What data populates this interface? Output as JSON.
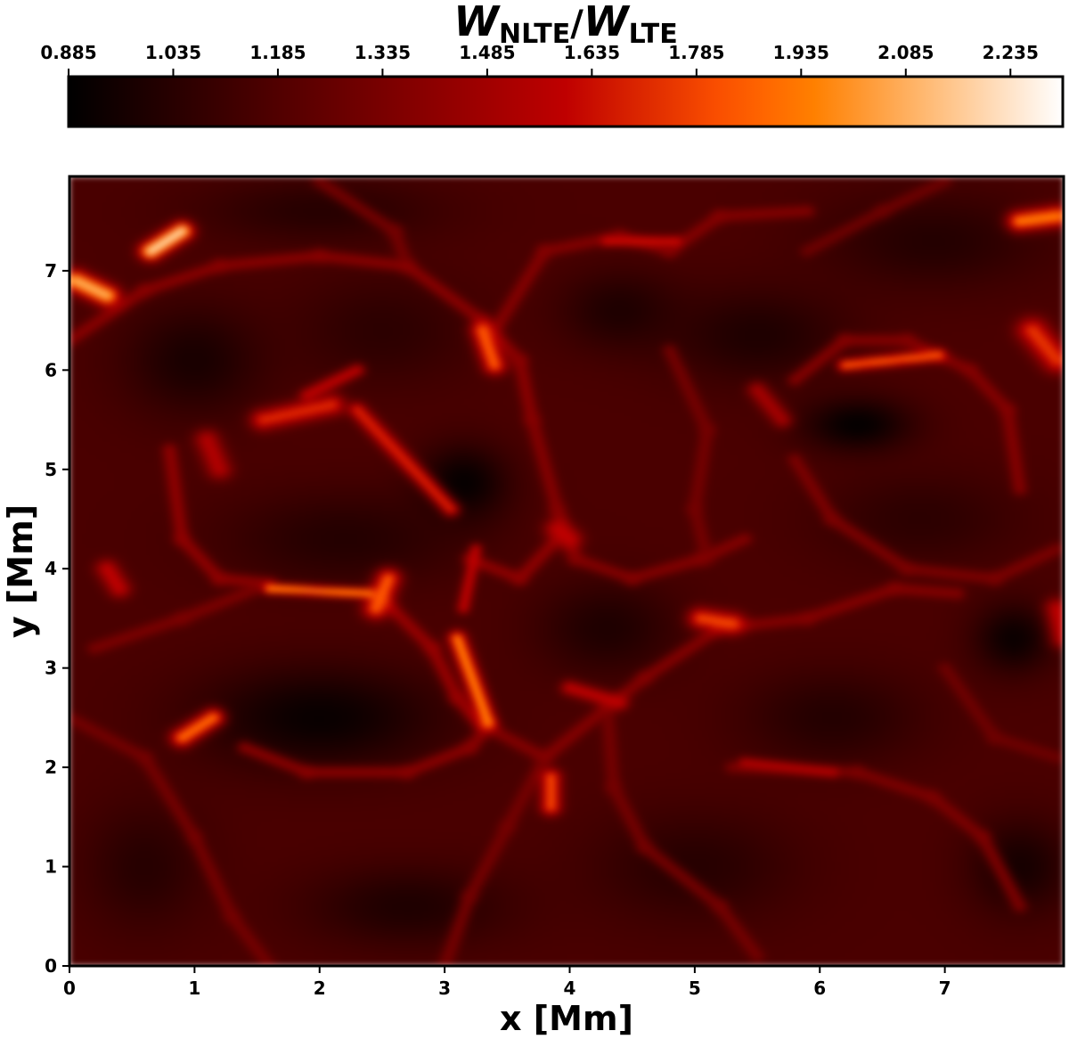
{
  "chart_data": {
    "type": "heatmap",
    "colormap": "gist_heat",
    "colorbar": {
      "title_main_1": "W",
      "title_sub_1": "NLTE",
      "title_slash": "/",
      "title_main_2": "W",
      "title_sub_2": "LTE",
      "placement": "top",
      "range": [
        0.885,
        2.31
      ],
      "ticks": [
        0.885,
        1.035,
        1.185,
        1.335,
        1.485,
        1.635,
        1.785,
        1.935,
        2.085,
        2.235
      ],
      "tick_labels": [
        "0.885",
        "1.035",
        "1.185",
        "1.335",
        "1.485",
        "1.635",
        "1.785",
        "1.935",
        "2.085",
        "2.235"
      ]
    },
    "xlabel": "x [Mm]",
    "ylabel": "y [Mm]",
    "xlim": [
      0,
      7.95
    ],
    "ylim": [
      0,
      7.95
    ],
    "xticks": [
      0,
      1,
      2,
      3,
      4,
      5,
      6,
      7
    ],
    "yticks": [
      0,
      1,
      2,
      3,
      4,
      5,
      6,
      7
    ],
    "xtick_labels": [
      "0",
      "1",
      "2",
      "3",
      "4",
      "5",
      "6",
      "7"
    ],
    "ytick_labels": [
      "0",
      "1",
      "2",
      "3",
      "4",
      "5",
      "6",
      "7"
    ],
    "background_level": 1.16,
    "dark_cells": [
      {
        "x": 2.0,
        "y": 2.5,
        "rx": 1.2,
        "ry": 0.65,
        "value": 0.92
      },
      {
        "x": 3.15,
        "y": 4.85,
        "rx": 0.45,
        "ry": 0.5,
        "value": 0.9
      },
      {
        "x": 6.3,
        "y": 5.45,
        "rx": 0.55,
        "ry": 0.35,
        "value": 0.9
      },
      {
        "x": 1.0,
        "y": 6.1,
        "rx": 0.7,
        "ry": 0.7,
        "value": 0.98
      },
      {
        "x": 2.2,
        "y": 4.3,
        "rx": 1.2,
        "ry": 0.6,
        "value": 1.02
      },
      {
        "x": 4.3,
        "y": 3.4,
        "rx": 0.7,
        "ry": 0.6,
        "value": 1.0
      },
      {
        "x": 7.55,
        "y": 3.3,
        "rx": 0.4,
        "ry": 0.45,
        "value": 0.93
      },
      {
        "x": 5.5,
        "y": 6.35,
        "rx": 0.9,
        "ry": 0.6,
        "value": 1.0
      },
      {
        "x": 4.4,
        "y": 6.6,
        "rx": 0.6,
        "ry": 0.5,
        "value": 1.0
      },
      {
        "x": 6.1,
        "y": 2.5,
        "rx": 0.9,
        "ry": 0.6,
        "value": 1.02
      },
      {
        "x": 5.0,
        "y": 1.0,
        "rx": 1.0,
        "ry": 0.7,
        "value": 1.03
      },
      {
        "x": 2.7,
        "y": 0.6,
        "rx": 1.0,
        "ry": 0.5,
        "value": 1.0
      },
      {
        "x": 0.6,
        "y": 1.0,
        "rx": 0.6,
        "ry": 0.8,
        "value": 1.03
      },
      {
        "x": 7.6,
        "y": 1.0,
        "rx": 0.5,
        "ry": 0.6,
        "value": 0.97
      },
      {
        "x": 2.0,
        "y": 7.6,
        "rx": 1.2,
        "ry": 0.4,
        "value": 1.03
      },
      {
        "x": 6.9,
        "y": 7.3,
        "rx": 1.1,
        "ry": 0.6,
        "value": 1.02
      },
      {
        "x": 6.8,
        "y": 4.5,
        "rx": 1.0,
        "ry": 0.6,
        "value": 1.05
      },
      {
        "x": 2.5,
        "y": 6.4,
        "rx": 0.9,
        "ry": 0.7,
        "value": 1.05
      }
    ],
    "bright_lanes": [
      {
        "x": 1.6,
        "y": 3.8,
        "x2": 2.4,
        "y2": 3.75,
        "width": 0.05,
        "value": 1.98
      },
      {
        "x": 2.45,
        "y": 3.6,
        "x2": 2.55,
        "y2": 3.9,
        "width": 0.1,
        "value": 1.85
      },
      {
        "x": 1.55,
        "y": 5.5,
        "x2": 2.1,
        "y2": 5.65,
        "width": 0.1,
        "value": 1.72
      },
      {
        "x": 1.9,
        "y": 5.75,
        "x2": 2.3,
        "y2": 6.0,
        "width": 0.06,
        "value": 1.6
      },
      {
        "x": 2.3,
        "y": 5.6,
        "x2": 3.05,
        "y2": 4.6,
        "width": 0.07,
        "value": 1.7
      },
      {
        "x": 0.05,
        "y": 6.9,
        "x2": 0.3,
        "y2": 6.75,
        "width": 0.1,
        "value": 2.1
      },
      {
        "x": 0.65,
        "y": 7.2,
        "x2": 0.9,
        "y2": 7.4,
        "width": 0.09,
        "value": 2.2
      },
      {
        "x": 3.1,
        "y": 3.3,
        "x2": 3.35,
        "y2": 2.45,
        "width": 0.07,
        "value": 1.95
      },
      {
        "x": 3.15,
        "y": 3.6,
        "x2": 3.25,
        "y2": 4.2,
        "width": 0.05,
        "value": 1.6
      },
      {
        "x": 0.9,
        "y": 2.3,
        "x2": 1.15,
        "y2": 2.5,
        "width": 0.09,
        "value": 1.9
      },
      {
        "x": 3.85,
        "y": 1.6,
        "x2": 3.85,
        "y2": 1.9,
        "width": 0.08,
        "value": 1.8
      },
      {
        "x": 6.2,
        "y": 6.05,
        "x2": 6.95,
        "y2": 6.15,
        "width": 0.06,
        "value": 1.85
      },
      {
        "x": 5.4,
        "y": 2.05,
        "x2": 6.1,
        "y2": 1.95,
        "width": 0.05,
        "value": 1.55
      },
      {
        "x": 3.9,
        "y": 4.4,
        "x2": 4.0,
        "y2": 4.3,
        "width": 0.1,
        "value": 1.6
      },
      {
        "x": 3.3,
        "y": 6.4,
        "x2": 3.4,
        "y2": 6.05,
        "width": 0.09,
        "value": 1.85
      },
      {
        "x": 7.6,
        "y": 7.5,
        "x2": 7.9,
        "y2": 7.55,
        "width": 0.1,
        "value": 1.95
      },
      {
        "x": 7.7,
        "y": 6.4,
        "x2": 7.9,
        "y2": 6.1,
        "width": 0.12,
        "value": 1.75
      },
      {
        "x": 5.05,
        "y": 3.5,
        "x2": 5.3,
        "y2": 3.45,
        "width": 0.1,
        "value": 1.8
      },
      {
        "x": 4.0,
        "y": 2.8,
        "x2": 4.4,
        "y2": 2.65,
        "width": 0.07,
        "value": 1.6
      },
      {
        "x": 4.3,
        "y": 7.3,
        "x2": 4.85,
        "y2": 7.3,
        "width": 0.05,
        "value": 1.65
      },
      {
        "x": 0.3,
        "y": 4.0,
        "x2": 0.4,
        "y2": 3.8,
        "width": 0.09,
        "value": 1.6
      },
      {
        "x": 7.9,
        "y": 3.6,
        "x2": 7.95,
        "y2": 3.3,
        "width": 0.1,
        "value": 1.6
      },
      {
        "x": 5.5,
        "y": 5.8,
        "x2": 5.7,
        "y2": 5.5,
        "width": 0.08,
        "value": 1.5
      },
      {
        "x": 1.1,
        "y": 5.3,
        "x2": 1.2,
        "y2": 5.0,
        "width": 0.1,
        "value": 1.55
      }
    ],
    "network_lanes": [
      {
        "points": [
          [
            0.0,
            6.3
          ],
          [
            0.6,
            6.8
          ],
          [
            1.2,
            7.05
          ],
          [
            2.0,
            7.15
          ],
          [
            2.7,
            7.05
          ],
          [
            3.3,
            6.5
          ],
          [
            3.6,
            6.1
          ],
          [
            3.7,
            5.5
          ]
        ],
        "value": 1.4
      },
      {
        "points": [
          [
            3.4,
            6.4
          ],
          [
            3.8,
            7.2
          ],
          [
            4.4,
            7.35
          ],
          [
            4.8,
            7.2
          ],
          [
            5.2,
            7.55
          ],
          [
            5.9,
            7.6
          ]
        ],
        "value": 1.38
      },
      {
        "points": [
          [
            3.7,
            5.5
          ],
          [
            3.9,
            4.6
          ],
          [
            4.05,
            4.1
          ],
          [
            4.5,
            3.9
          ],
          [
            5.05,
            4.1
          ],
          [
            5.4,
            4.3
          ]
        ],
        "value": 1.38
      },
      {
        "points": [
          [
            0.8,
            5.2
          ],
          [
            0.9,
            4.3
          ],
          [
            1.2,
            3.9
          ],
          [
            1.6,
            3.85
          ]
        ],
        "value": 1.42
      },
      {
        "points": [
          [
            0.2,
            3.2
          ],
          [
            0.9,
            3.5
          ],
          [
            1.5,
            3.8
          ]
        ],
        "value": 1.35
      },
      {
        "points": [
          [
            1.4,
            2.2
          ],
          [
            1.9,
            1.95
          ],
          [
            2.7,
            1.95
          ],
          [
            3.2,
            2.2
          ],
          [
            3.35,
            2.4
          ]
        ],
        "value": 1.4
      },
      {
        "points": [
          [
            3.35,
            2.4
          ],
          [
            3.8,
            2.1
          ],
          [
            4.3,
            2.6
          ],
          [
            4.6,
            2.9
          ],
          [
            5.2,
            3.4
          ],
          [
            5.9,
            3.5
          ],
          [
            6.6,
            3.8
          ],
          [
            7.1,
            3.75
          ]
        ],
        "value": 1.38
      },
      {
        "points": [
          [
            3.8,
            2.1
          ],
          [
            3.5,
            1.4
          ],
          [
            3.2,
            0.7
          ],
          [
            3.0,
            0.0
          ]
        ],
        "value": 1.32
      },
      {
        "points": [
          [
            4.3,
            2.6
          ],
          [
            4.35,
            1.8
          ],
          [
            4.6,
            1.2
          ],
          [
            5.2,
            0.6
          ],
          [
            5.5,
            0.1
          ]
        ],
        "value": 1.32
      },
      {
        "points": [
          [
            5.3,
            2.0
          ],
          [
            6.3,
            1.95
          ],
          [
            6.9,
            1.7
          ],
          [
            7.3,
            1.3
          ],
          [
            7.6,
            0.6
          ]
        ],
        "value": 1.35
      },
      {
        "points": [
          [
            0.0,
            2.5
          ],
          [
            0.6,
            2.1
          ],
          [
            1.0,
            1.3
          ],
          [
            1.3,
            0.5
          ],
          [
            1.6,
            0.0
          ]
        ],
        "value": 1.32
      },
      {
        "points": [
          [
            5.8,
            5.9
          ],
          [
            6.2,
            6.3
          ],
          [
            6.7,
            6.3
          ],
          [
            7.2,
            6.0
          ],
          [
            7.5,
            5.6
          ],
          [
            7.6,
            4.8
          ]
        ],
        "value": 1.38
      },
      {
        "points": [
          [
            5.8,
            5.1
          ],
          [
            6.1,
            4.5
          ],
          [
            6.7,
            4.0
          ],
          [
            7.4,
            3.9
          ],
          [
            7.9,
            4.2
          ]
        ],
        "value": 1.35
      },
      {
        "points": [
          [
            4.8,
            6.2
          ],
          [
            5.1,
            5.4
          ],
          [
            5.0,
            4.6
          ],
          [
            5.1,
            4.1
          ]
        ],
        "value": 1.32
      },
      {
        "points": [
          [
            2.5,
            3.7
          ],
          [
            2.9,
            3.2
          ],
          [
            3.1,
            2.7
          ],
          [
            3.3,
            2.4
          ]
        ],
        "value": 1.45
      },
      {
        "points": [
          [
            3.2,
            4.1
          ],
          [
            3.6,
            3.9
          ],
          [
            3.9,
            4.3
          ]
        ],
        "value": 1.42
      },
      {
        "points": [
          [
            5.9,
            7.2
          ],
          [
            6.5,
            7.6
          ],
          [
            7.0,
            7.9
          ]
        ],
        "value": 1.3
      },
      {
        "points": [
          [
            7.0,
            3.0
          ],
          [
            7.4,
            2.3
          ],
          [
            7.9,
            2.1
          ]
        ],
        "value": 1.3
      },
      {
        "points": [
          [
            2.0,
            7.9
          ],
          [
            2.6,
            7.4
          ],
          [
            2.7,
            7.05
          ]
        ],
        "value": 1.32
      }
    ]
  }
}
